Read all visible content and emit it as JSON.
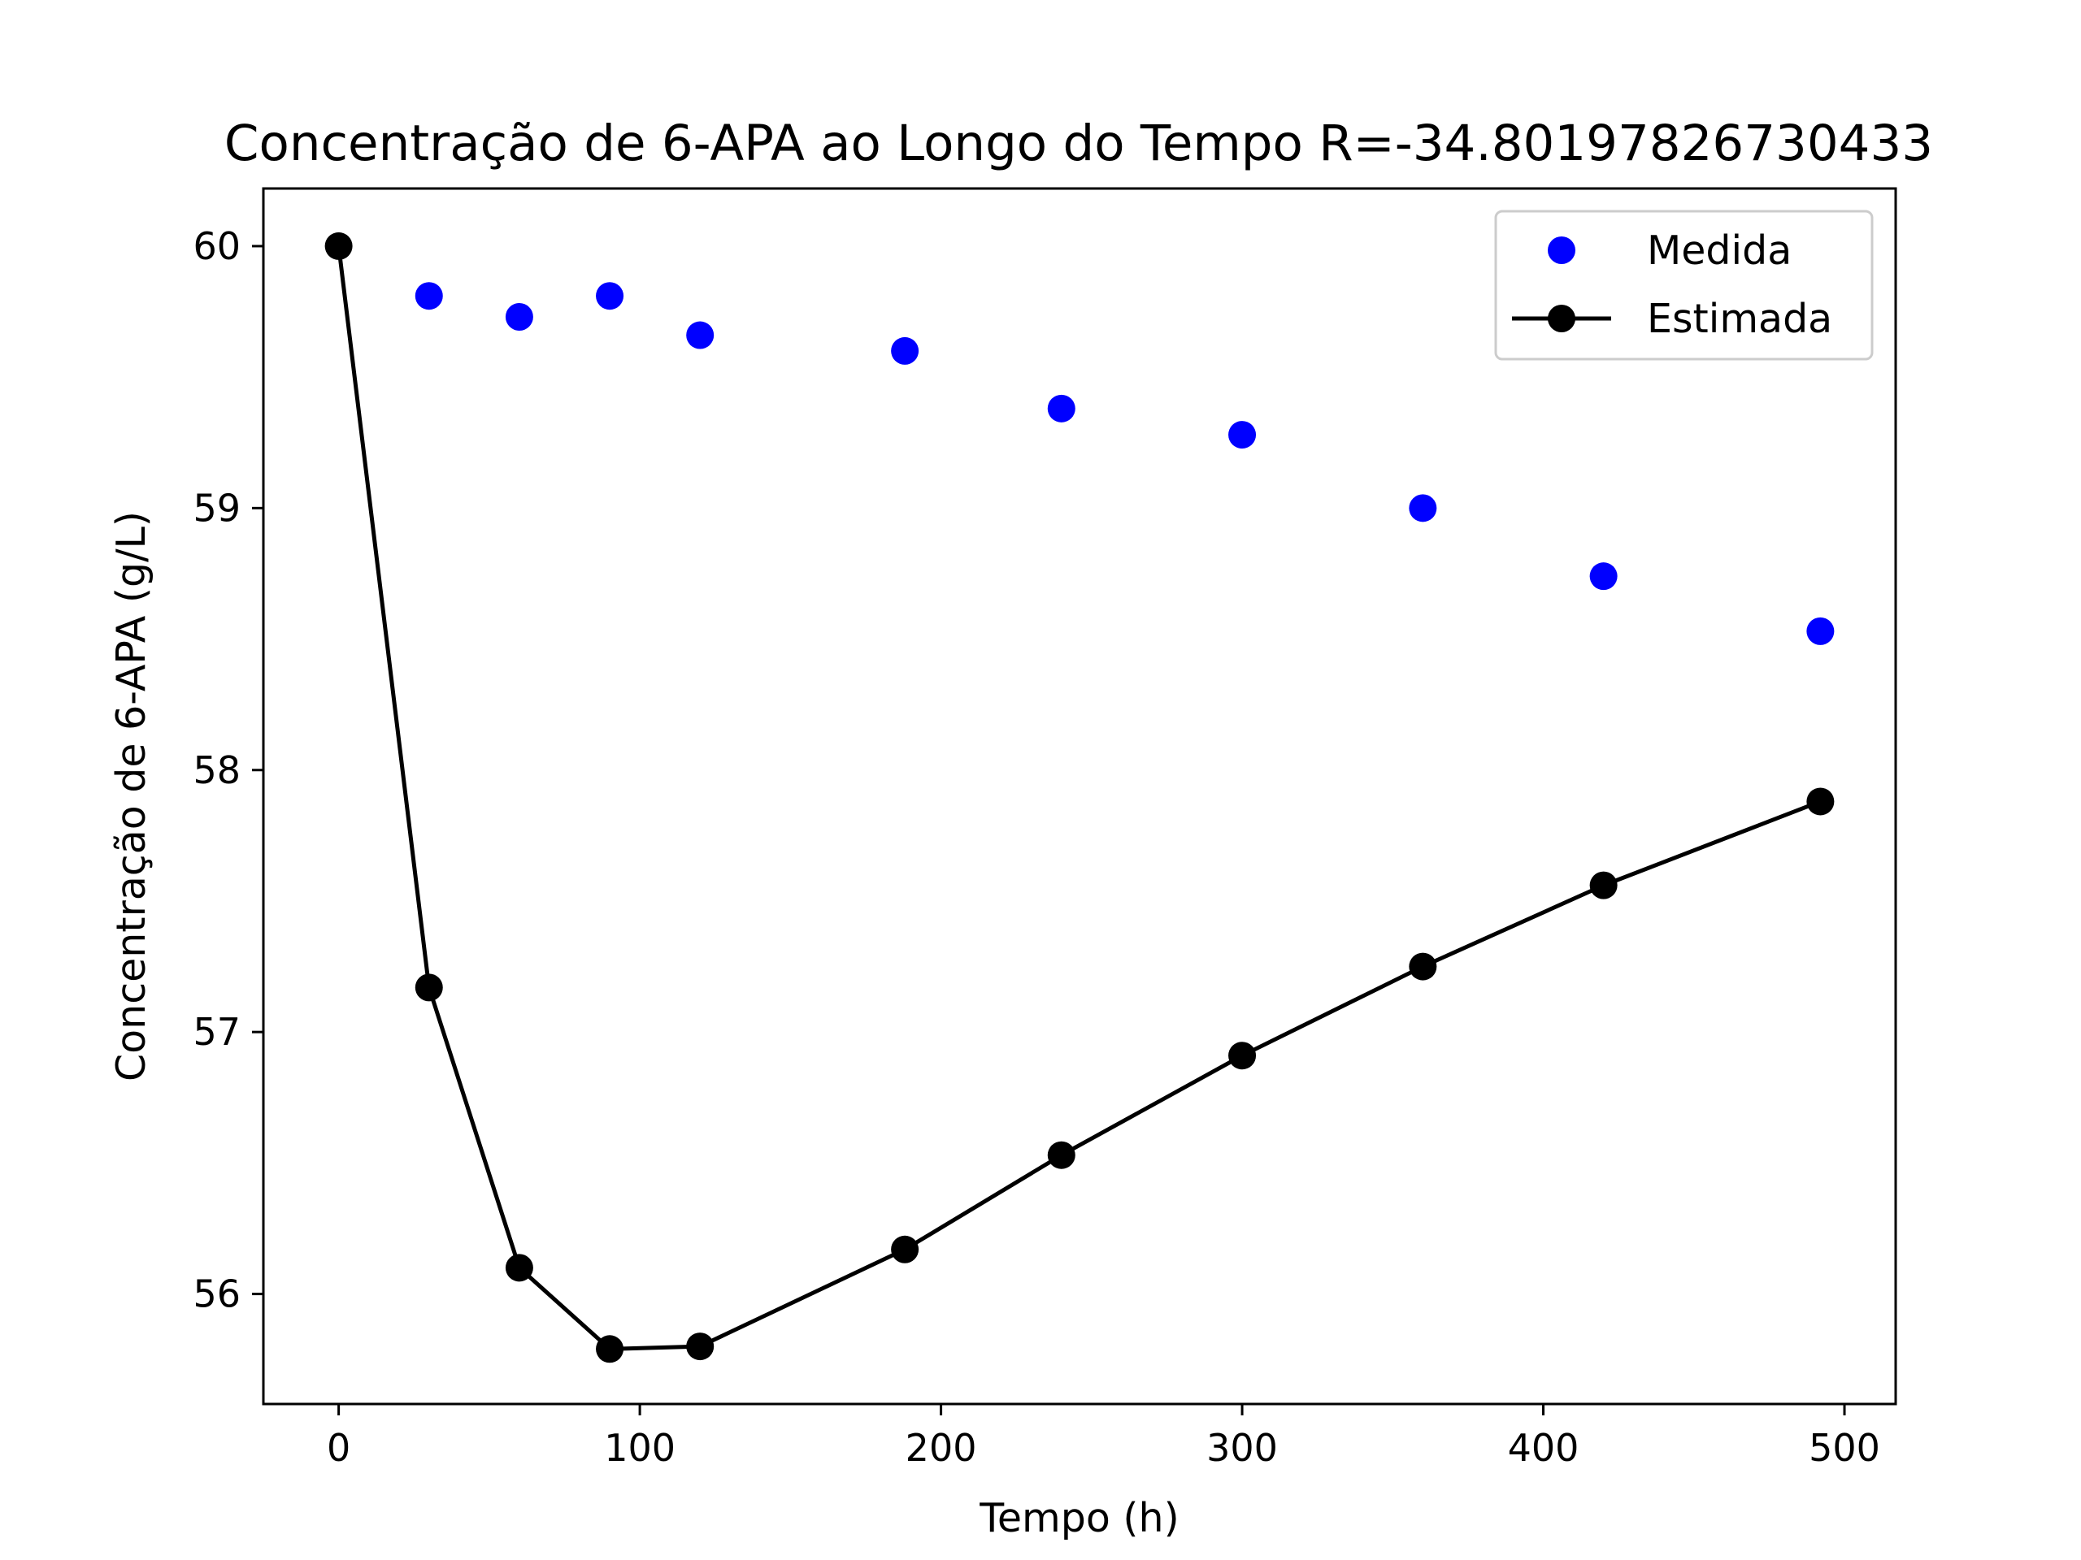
{
  "chart_data": {
    "type": "line",
    "title": "Concentração de 6-APA ao Longo do Tempo R=-34.80197826730433",
    "xlabel": "Tempo (h)",
    "ylabel": "Concentração de 6-APA (g/L)",
    "xlim": [
      -25,
      517
    ],
    "ylim": [
      55.58,
      60.22
    ],
    "xticks": [
      0,
      100,
      200,
      300,
      400,
      500
    ],
    "yticks": [
      56,
      57,
      58,
      59,
      60
    ],
    "grid": false,
    "legend_position": "top-right",
    "series": [
      {
        "name": "Medida",
        "style": "markers",
        "color": "#0000ff",
        "x": [
          30,
          60,
          90,
          120,
          188,
          240,
          300,
          360,
          420,
          492
        ],
        "y": [
          59.81,
          59.73,
          59.81,
          59.66,
          59.6,
          59.38,
          59.28,
          59.0,
          58.74,
          58.53
        ]
      },
      {
        "name": "Estimada",
        "style": "line+markers",
        "color": "#000000",
        "x": [
          0,
          30,
          60,
          90,
          120,
          188,
          240,
          300,
          360,
          420,
          492
        ],
        "y": [
          60.0,
          57.17,
          56.1,
          55.79,
          55.8,
          56.17,
          56.53,
          56.91,
          57.25,
          57.56,
          57.88
        ]
      }
    ]
  }
}
